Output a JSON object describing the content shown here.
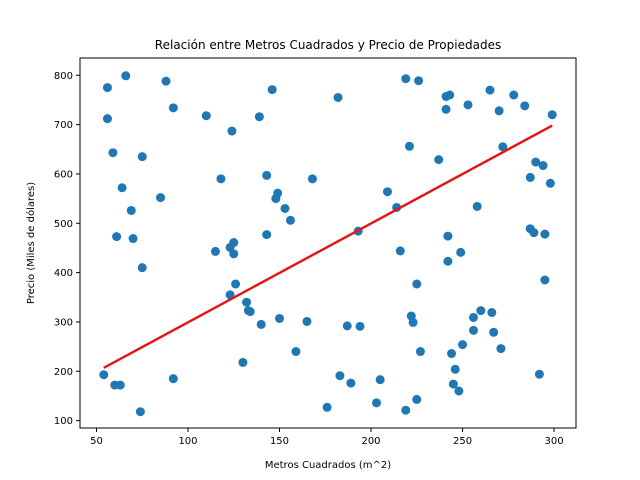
{
  "chart_data": {
    "type": "scatter",
    "title": "Relación entre Metros Cuadrados y Precio de Propiedades",
    "xlabel": "Metros Cuadrados (m^2)",
    "ylabel": "Precio (Miles de dólares)",
    "xlim": [
      41,
      312
    ],
    "ylim": [
      85,
      835
    ],
    "xticks": [
      50,
      100,
      150,
      200,
      250,
      300
    ],
    "yticks": [
      100,
      200,
      300,
      400,
      500,
      600,
      700,
      800
    ],
    "grid": false,
    "colors": {
      "points": "#1f77b4",
      "trend": "#d62728",
      "trend_inner": "#ff0000"
    },
    "series": [
      {
        "kind": "scatter",
        "points": [
          [
            54,
            193
          ],
          [
            56,
            775
          ],
          [
            56,
            712
          ],
          [
            59,
            643
          ],
          [
            60,
            172
          ],
          [
            61,
            473
          ],
          [
            63,
            172
          ],
          [
            64,
            572
          ],
          [
            66,
            799
          ],
          [
            69,
            526
          ],
          [
            70,
            469
          ],
          [
            74,
            118
          ],
          [
            75,
            635
          ],
          [
            75,
            410
          ],
          [
            85,
            552
          ],
          [
            88,
            788
          ],
          [
            92,
            734
          ],
          [
            92,
            185
          ],
          [
            110,
            718
          ],
          [
            115,
            443
          ],
          [
            118,
            590
          ],
          [
            123,
            451
          ],
          [
            123,
            355
          ],
          [
            124,
            687
          ],
          [
            125,
            461
          ],
          [
            125,
            438
          ],
          [
            126,
            377
          ],
          [
            130,
            218
          ],
          [
            132,
            340
          ],
          [
            133,
            323
          ],
          [
            134,
            321
          ],
          [
            139,
            716
          ],
          [
            140,
            295
          ],
          [
            143,
            597
          ],
          [
            143,
            477
          ],
          [
            146,
            771
          ],
          [
            148,
            550
          ],
          [
            149,
            561
          ],
          [
            150,
            307
          ],
          [
            153,
            530
          ],
          [
            156,
            506
          ],
          [
            159,
            240
          ],
          [
            165,
            301
          ],
          [
            168,
            590
          ],
          [
            176,
            127
          ],
          [
            182,
            755
          ],
          [
            183,
            191
          ],
          [
            187,
            292
          ],
          [
            189,
            176
          ],
          [
            193,
            484
          ],
          [
            194,
            291
          ],
          [
            203,
            136
          ],
          [
            205,
            183
          ],
          [
            209,
            564
          ],
          [
            214,
            532
          ],
          [
            216,
            444
          ],
          [
            219,
            793
          ],
          [
            219,
            121
          ],
          [
            221,
            656
          ],
          [
            222,
            312
          ],
          [
            223,
            299
          ],
          [
            225,
            143
          ],
          [
            225,
            377
          ],
          [
            226,
            789
          ],
          [
            227,
            240
          ],
          [
            237,
            629
          ],
          [
            241,
            731
          ],
          [
            241,
            757
          ],
          [
            242,
            423
          ],
          [
            242,
            474
          ],
          [
            243,
            760
          ],
          [
            244,
            236
          ],
          [
            245,
            174
          ],
          [
            246,
            204
          ],
          [
            248,
            160
          ],
          [
            249,
            441
          ],
          [
            250,
            254
          ],
          [
            253,
            740
          ],
          [
            256,
            309
          ],
          [
            256,
            283
          ],
          [
            258,
            534
          ],
          [
            260,
            323
          ],
          [
            265,
            770
          ],
          [
            266,
            319
          ],
          [
            267,
            279
          ],
          [
            270,
            728
          ],
          [
            271,
            246
          ],
          [
            272,
            655
          ],
          [
            278,
            760
          ],
          [
            284,
            738
          ],
          [
            287,
            489
          ],
          [
            287,
            593
          ],
          [
            289,
            481
          ],
          [
            290,
            624
          ],
          [
            292,
            194
          ],
          [
            294,
            617
          ],
          [
            295,
            478
          ],
          [
            295,
            385
          ],
          [
            298,
            581
          ],
          [
            299,
            720
          ]
        ]
      },
      {
        "kind": "trend-line",
        "points": [
          [
            54,
            207
          ],
          [
            299,
            698
          ]
        ]
      }
    ]
  }
}
